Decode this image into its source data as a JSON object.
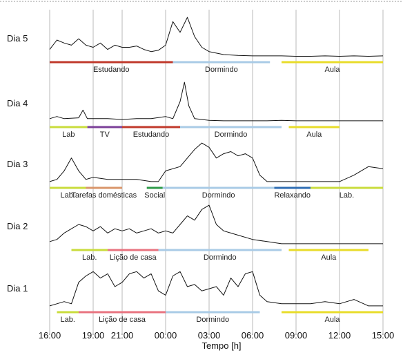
{
  "chart_data": {
    "type": "line",
    "title": "",
    "xlabel": "Tempo [h]",
    "ylabel": "",
    "x_ticks": [
      "16:00",
      "19:00",
      "21:00",
      "00:00",
      "03:00",
      "06:00",
      "09:00",
      "12:00",
      "15:00"
    ],
    "grid": true,
    "colors": {
      "Estudando": "#c0392b",
      "Dormindo": "#a9cbe6",
      "Aula": "#e8dc2a",
      "Lab": "#c9dc3c",
      "TV": "#7b3f98",
      "Tarefas domésticas": "#d9956a",
      "Social": "#2e9a48",
      "Relaxando": "#2f6db3",
      "Lição de casa": "#e8737f"
    },
    "days": [
      {
        "name": "Dia 5",
        "series": [
          [
            0,
            0.2
          ],
          [
            0.5,
            0.42
          ],
          [
            1,
            0.35
          ],
          [
            1.5,
            0.3
          ],
          [
            2,
            0.45
          ],
          [
            2.5,
            0.3
          ],
          [
            3,
            0.25
          ],
          [
            3.5,
            0.35
          ],
          [
            4,
            0.2
          ],
          [
            4.5,
            0.3
          ],
          [
            5,
            0.25
          ],
          [
            5.5,
            0.25
          ],
          [
            6,
            0.28
          ],
          [
            6.5,
            0.2
          ],
          [
            7,
            0.15
          ],
          [
            7.5,
            0.18
          ],
          [
            8,
            0.3
          ],
          [
            8.5,
            0.85
          ],
          [
            9,
            0.6
          ],
          [
            9.5,
            0.95
          ],
          [
            10,
            0.5
          ],
          [
            10.5,
            0.25
          ],
          [
            11,
            0.15
          ],
          [
            12,
            0.08
          ],
          [
            13,
            0.06
          ],
          [
            14,
            0.05
          ],
          [
            15,
            0.05
          ],
          [
            16,
            0.05
          ],
          [
            17,
            0.04
          ],
          [
            18,
            0.04
          ],
          [
            19,
            0.05
          ],
          [
            20,
            0.04
          ],
          [
            21,
            0.05
          ],
          [
            22,
            0.04
          ],
          [
            23,
            0.05
          ]
        ],
        "activities": [
          {
            "label": "Estudando",
            "start": 0,
            "end": 8.5
          },
          {
            "label": "Dormindo",
            "start": 8.5,
            "end": 15.2
          },
          {
            "label": "Aula",
            "start": 16.0,
            "end": 23.0
          }
        ]
      },
      {
        "name": "Dia 4",
        "series": [
          [
            0,
            0.1
          ],
          [
            0.5,
            0.15
          ],
          [
            1,
            0.1
          ],
          [
            2,
            0.12
          ],
          [
            2.3,
            0.3
          ],
          [
            2.6,
            0.1
          ],
          [
            3,
            0.1
          ],
          [
            4,
            0.1
          ],
          [
            5,
            0.08
          ],
          [
            6,
            0.1
          ],
          [
            7,
            0.1
          ],
          [
            8,
            0.15
          ],
          [
            8.5,
            0.1
          ],
          [
            9,
            0.5
          ],
          [
            9.3,
            0.95
          ],
          [
            9.6,
            0.4
          ],
          [
            10,
            0.1
          ],
          [
            11,
            0.06
          ],
          [
            12,
            0.05
          ],
          [
            13,
            0.05
          ],
          [
            14,
            0.05
          ],
          [
            15,
            0.05
          ],
          [
            16,
            0.06
          ],
          [
            17,
            0.05
          ],
          [
            18,
            0.05
          ],
          [
            19,
            0.05
          ],
          [
            20,
            0.05
          ],
          [
            21,
            0.05
          ],
          [
            22,
            0.05
          ],
          [
            23,
            0.05
          ]
        ],
        "activities": [
          {
            "label": "Lab",
            "start": 0,
            "end": 2.6
          },
          {
            "label": "TV",
            "start": 2.6,
            "end": 5.0
          },
          {
            "label": "Estudando",
            "start": 5.0,
            "end": 9.0
          },
          {
            "label": "Dormindo",
            "start": 9.0,
            "end": 16.0
          },
          {
            "label": "Aula",
            "start": 16.5,
            "end": 20.0
          }
        ]
      },
      {
        "name": "Dia 3",
        "series": [
          [
            0,
            0.05
          ],
          [
            0.5,
            0.1
          ],
          [
            1,
            0.3
          ],
          [
            1.5,
            0.6
          ],
          [
            2,
            0.3
          ],
          [
            2.5,
            0.1
          ],
          [
            3,
            0.15
          ],
          [
            4,
            0.1
          ],
          [
            5,
            0.1
          ],
          [
            6,
            0.1
          ],
          [
            7,
            0.05
          ],
          [
            7.5,
            0.05
          ],
          [
            8,
            0.3
          ],
          [
            9,
            0.4
          ],
          [
            9.5,
            0.6
          ],
          [
            10,
            0.8
          ],
          [
            10.5,
            0.95
          ],
          [
            11,
            0.85
          ],
          [
            11.5,
            0.6
          ],
          [
            12,
            0.7
          ],
          [
            12.5,
            0.75
          ],
          [
            13,
            0.65
          ],
          [
            13.5,
            0.7
          ],
          [
            14,
            0.6
          ],
          [
            14.5,
            0.2
          ],
          [
            15,
            0.05
          ],
          [
            16,
            0.05
          ],
          [
            17,
            0.05
          ],
          [
            18,
            0.05
          ],
          [
            19,
            0.05
          ],
          [
            20,
            0.05
          ],
          [
            21,
            0.2
          ],
          [
            22,
            0.4
          ],
          [
            23,
            0.35
          ]
        ],
        "activities": [
          {
            "label": "Lab.",
            "start": 0,
            "end": 2.5
          },
          {
            "label": "Tarefas domésticas",
            "start": 2.5,
            "end": 5.0
          },
          {
            "label": "Social",
            "start": 6.7,
            "end": 7.8
          },
          {
            "label": "Dormindo",
            "start": 7.8,
            "end": 15.5
          },
          {
            "label": "Relaxando",
            "start": 15.5,
            "end": 18.0
          },
          {
            "label": "Lab.",
            "start": 18.0,
            "end": 23.0
          }
        ]
      },
      {
        "name": "Dia 2",
        "series": [
          [
            0,
            0.1
          ],
          [
            0.5,
            0.15
          ],
          [
            1,
            0.3
          ],
          [
            1.5,
            0.4
          ],
          [
            2,
            0.5
          ],
          [
            2.5,
            0.45
          ],
          [
            3,
            0.35
          ],
          [
            3.5,
            0.45
          ],
          [
            4,
            0.3
          ],
          [
            4.5,
            0.4
          ],
          [
            5,
            0.35
          ],
          [
            5.5,
            0.4
          ],
          [
            6,
            0.3
          ],
          [
            6.5,
            0.35
          ],
          [
            7,
            0.4
          ],
          [
            7.5,
            0.3
          ],
          [
            8,
            0.35
          ],
          [
            8.5,
            0.3
          ],
          [
            9,
            0.5
          ],
          [
            9.5,
            0.7
          ],
          [
            10,
            0.6
          ],
          [
            10.5,
            0.85
          ],
          [
            11,
            0.95
          ],
          [
            11.5,
            0.5
          ],
          [
            12,
            0.35
          ],
          [
            12.5,
            0.3
          ],
          [
            13,
            0.25
          ],
          [
            14,
            0.15
          ],
          [
            15,
            0.1
          ],
          [
            16,
            0.05
          ],
          [
            17,
            0.05
          ],
          [
            18,
            0.05
          ],
          [
            19,
            0.05
          ],
          [
            20,
            0.05
          ],
          [
            21,
            0.05
          ],
          [
            22,
            0.05
          ],
          [
            23,
            0.05
          ]
        ],
        "activities": [
          {
            "label": "Lab.",
            "start": 1.5,
            "end": 4.0
          },
          {
            "label": "Lição de casa",
            "start": 4.0,
            "end": 7.5
          },
          {
            "label": "Dormindo",
            "start": 7.5,
            "end": 16.0
          },
          {
            "label": "Aula",
            "start": 16.5,
            "end": 22.0
          }
        ]
      },
      {
        "name": "Dia 1",
        "series": [
          [
            0,
            0.05
          ],
          [
            0.5,
            0.1
          ],
          [
            1,
            0.15
          ],
          [
            1.5,
            0.1
          ],
          [
            2,
            0.6
          ],
          [
            2.5,
            0.75
          ],
          [
            3,
            0.85
          ],
          [
            3.5,
            0.7
          ],
          [
            4,
            0.8
          ],
          [
            4.5,
            0.5
          ],
          [
            5,
            0.6
          ],
          [
            5.5,
            0.8
          ],
          [
            6,
            0.85
          ],
          [
            6.5,
            0.7
          ],
          [
            7,
            0.8
          ],
          [
            7.5,
            0.4
          ],
          [
            8,
            0.3
          ],
          [
            8.5,
            0.75
          ],
          [
            9,
            0.85
          ],
          [
            9.5,
            0.5
          ],
          [
            10,
            0.55
          ],
          [
            10.5,
            0.4
          ],
          [
            11,
            0.45
          ],
          [
            11.5,
            0.5
          ],
          [
            12,
            0.3
          ],
          [
            12.5,
            0.7
          ],
          [
            13,
            0.5
          ],
          [
            13.5,
            0.8
          ],
          [
            14,
            0.85
          ],
          [
            14.5,
            0.3
          ],
          [
            15,
            0.15
          ],
          [
            16,
            0.1
          ],
          [
            17,
            0.1
          ],
          [
            18,
            0.1
          ],
          [
            19,
            0.15
          ],
          [
            20,
            0.1
          ],
          [
            21,
            0.2
          ],
          [
            22,
            0.05
          ],
          [
            23,
            0.05
          ]
        ],
        "activities": [
          {
            "label": "Lab.",
            "start": 0.5,
            "end": 2.0
          },
          {
            "label": "Lição de casa",
            "start": 2.0,
            "end": 8.0
          },
          {
            "label": "Dormindo",
            "start": 8.0,
            "end": 14.5
          },
          {
            "label": "Aula",
            "start": 16.0,
            "end": 23.0
          }
        ]
      }
    ]
  }
}
